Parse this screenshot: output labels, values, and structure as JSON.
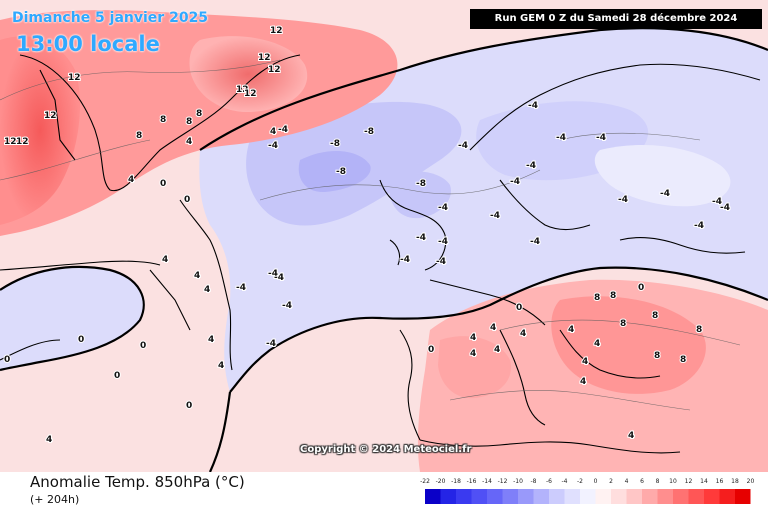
{
  "header": {
    "date_line": "Dimanche 5 janvier 2025",
    "time_line": "13:00 locale",
    "run_info": "Run GEM 0 Z du Samedi 28 décembre 2024"
  },
  "copyright": "Copyright © 2024 Meteociel.fr",
  "footer": {
    "title": "Anomalie Temp. 850hPa (°C)",
    "lead": "(+ 204h)"
  },
  "legend": {
    "ticks": [
      "-22",
      "-20",
      "-18",
      "-16",
      "-14",
      "-12",
      "-10",
      "-8",
      "-6",
      "-4",
      "-2",
      "0",
      "2",
      "4",
      "6",
      "8",
      "10",
      "12",
      "14",
      "16",
      "18",
      "20"
    ],
    "colors": [
      "#0a00c8",
      "#2424e6",
      "#3a3af0",
      "#5050f5",
      "#6666f8",
      "#7f7ff9",
      "#9999fa",
      "#b3b3fc",
      "#ccccfd",
      "#e0e0fe",
      "#f2f2ff",
      "#fff2f2",
      "#ffdede",
      "#ffc6c6",
      "#ffaaaa",
      "#ff8e8e",
      "#ff7272",
      "#ff5656",
      "#ff3a3a",
      "#f51e1e",
      "#e60000"
    ]
  },
  "contour_labels": [
    {
      "id": "greenland-1",
      "value": "12"
    },
    {
      "id": "greenland-2",
      "value": "12"
    },
    {
      "id": "greenland-3",
      "value": "12"
    },
    {
      "id": "greenland-4",
      "value": "12"
    },
    {
      "id": "greenland-5",
      "value": "12"
    },
    {
      "id": "greenland-6",
      "value": "12"
    },
    {
      "id": "greenland-7",
      "value": "12"
    },
    {
      "id": "greenland-8",
      "value": "8"
    },
    {
      "id": "greenland-9",
      "value": "8"
    },
    {
      "id": "greenland-10",
      "value": "8"
    },
    {
      "id": "greenland-11",
      "value": "8"
    },
    {
      "id": "greenland-12",
      "value": "4"
    },
    {
      "id": "greenland-13",
      "value": "4"
    },
    {
      "id": "greenland-14",
      "value": "4"
    },
    {
      "id": "greenland-15",
      "value": "0"
    },
    {
      "id": "greenland-16",
      "value": "0"
    },
    {
      "id": "left-1",
      "value": "12"
    },
    {
      "id": "left-2",
      "value": "12"
    },
    {
      "id": "atl-1",
      "value": "-4"
    },
    {
      "id": "atl-2",
      "value": "-4"
    },
    {
      "id": "atl-3",
      "value": "-4"
    },
    {
      "id": "atl-4",
      "value": "-8"
    },
    {
      "id": "atl-5",
      "value": "-8"
    },
    {
      "id": "atl-6",
      "value": "-8"
    },
    {
      "id": "atl-7",
      "value": "-4"
    },
    {
      "id": "atl-8",
      "value": "-4"
    },
    {
      "id": "atl-9",
      "value": "-4"
    },
    {
      "id": "atl-10",
      "value": "-4"
    },
    {
      "id": "atl-11",
      "value": "-4"
    },
    {
      "id": "atl-12",
      "value": "-4"
    },
    {
      "id": "uk-1",
      "value": "-8"
    },
    {
      "id": "uk-2",
      "value": "-4"
    },
    {
      "id": "uk-3",
      "value": "-4"
    },
    {
      "id": "uk-4",
      "value": "-4"
    },
    {
      "id": "uk-5",
      "value": "-4"
    },
    {
      "id": "uk-6",
      "value": "-4"
    },
    {
      "id": "uk-7",
      "value": "-4"
    },
    {
      "id": "scan-1",
      "value": "-4"
    },
    {
      "id": "scan-2",
      "value": "-4"
    },
    {
      "id": "scan-3",
      "value": "-4"
    },
    {
      "id": "eu-1",
      "value": "-4"
    },
    {
      "id": "eu-2",
      "value": "-4"
    },
    {
      "id": "eu-3",
      "value": "-4"
    },
    {
      "id": "eu-4",
      "value": "-4"
    },
    {
      "id": "eu-5",
      "value": "-4"
    },
    {
      "id": "eu-6",
      "value": "-4"
    },
    {
      "id": "eu-7",
      "value": "-4"
    },
    {
      "id": "med-1",
      "value": "4"
    },
    {
      "id": "med-2",
      "value": "4"
    },
    {
      "id": "med-3",
      "value": "4"
    },
    {
      "id": "med-4",
      "value": "4"
    },
    {
      "id": "med-5",
      "value": "4"
    },
    {
      "id": "med-6",
      "value": "8"
    },
    {
      "id": "med-7",
      "value": "8"
    },
    {
      "id": "med-8",
      "value": "8"
    },
    {
      "id": "med-9",
      "value": "8"
    },
    {
      "id": "med-10",
      "value": "8"
    },
    {
      "id": "med-11",
      "value": "8"
    },
    {
      "id": "med-12",
      "value": "8"
    },
    {
      "id": "med-13",
      "value": "4"
    },
    {
      "id": "med-14",
      "value": "4"
    },
    {
      "id": "med-15",
      "value": "4"
    },
    {
      "id": "med-16",
      "value": "4"
    },
    {
      "id": "med-17",
      "value": "4"
    },
    {
      "id": "med-18",
      "value": "0"
    },
    {
      "id": "med-19",
      "value": "0"
    },
    {
      "id": "sw-1",
      "value": "4"
    },
    {
      "id": "sw-2",
      "value": "4"
    },
    {
      "id": "sw-3",
      "value": "4"
    },
    {
      "id": "sw-4",
      "value": "0"
    },
    {
      "id": "sw-5",
      "value": "0"
    },
    {
      "id": "sw-6",
      "value": "0"
    },
    {
      "id": "sw-7",
      "value": "4"
    },
    {
      "id": "sw-8",
      "value": "4"
    },
    {
      "id": "sw-9",
      "value": "4"
    },
    {
      "id": "sw-10",
      "value": "0"
    },
    {
      "id": "sw-11",
      "value": "0"
    },
    {
      "id": "sw-12",
      "value": "0"
    }
  ]
}
